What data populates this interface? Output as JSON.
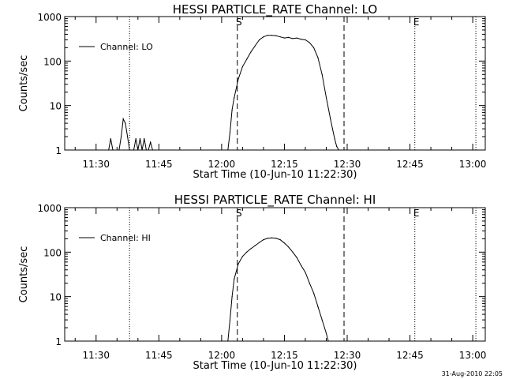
{
  "chart_data": [
    {
      "type": "line",
      "title": "HESSI PARTICLE_RATE Channel: LO",
      "xlabel": "Start Time (10-Jun-10 11:22:30)",
      "ylabel": "Counts/sec",
      "y_scale": "log",
      "ylim": [
        1,
        1000
      ],
      "xlim": [
        "11:22:30",
        "13:03:00"
      ],
      "x_ticks": [
        "11:30",
        "11:45",
        "12:00",
        "12:15",
        "12:30",
        "12:45",
        "13:00"
      ],
      "y_ticks": [
        "1",
        "10",
        "100",
        "1000"
      ],
      "legend": "top-left",
      "series": [
        {
          "name": "Channel: LO",
          "x": [
            "11:33:00",
            "11:33:30",
            "11:34:00",
            "11:35:30",
            "11:36:00",
            "11:36:30",
            "11:37:00",
            "11:37:30",
            "11:38:00",
            "11:38:20",
            "11:38:40",
            "11:39:00",
            "11:39:30",
            "11:40:00",
            "11:40:30",
            "11:41:00",
            "11:41:30",
            "11:42:00",
            "11:42:30",
            "11:43:00",
            "11:43:30",
            "11:44:00",
            "12:01:30",
            "12:02:00",
            "12:02:30",
            "12:03:00",
            "12:04:00",
            "12:05:00",
            "12:06:00",
            "12:07:00",
            "12:08:00",
            "12:09:00",
            "12:10:00",
            "12:11:00",
            "12:12:00",
            "12:13:00",
            "12:14:00",
            "12:15:00",
            "12:16:00",
            "12:17:00",
            "12:18:00",
            "12:19:00",
            "12:20:00",
            "12:21:00",
            "12:22:00",
            "12:23:00",
            "12:24:00",
            "12:25:00",
            "12:26:00",
            "12:26:30",
            "12:27:00",
            "12:27:30",
            "12:28:00"
          ],
          "y": [
            1,
            1.8,
            1,
            1,
            2,
            5,
            4,
            2,
            1,
            1,
            1,
            1,
            1.8,
            1,
            1.8,
            1,
            1.8,
            1,
            1,
            1.5,
            1,
            1,
            1,
            2.5,
            8,
            15,
            40,
            75,
            110,
            160,
            220,
            300,
            350,
            380,
            380,
            370,
            350,
            330,
            340,
            320,
            330,
            310,
            300,
            260,
            200,
            120,
            50,
            15,
            5,
            3,
            1.8,
            1.2,
            1
          ]
        }
      ],
      "event_lines": {
        "dashed": [
          "12:03:45",
          "12:29:15"
        ],
        "dotted": [
          "11:38:00",
          "12:46:10",
          "13:00:45"
        ]
      },
      "markers": [
        {
          "label": "S",
          "x": "12:03:45"
        },
        {
          "label": "E",
          "x": "12:46:10"
        }
      ]
    },
    {
      "type": "line",
      "title": "HESSI PARTICLE_RATE Channel: HI",
      "xlabel": "Start Time (10-Jun-10 11:22:30)",
      "ylabel": "Counts/sec",
      "y_scale": "log",
      "ylim": [
        1,
        1000
      ],
      "xlim": [
        "11:22:30",
        "13:03:00"
      ],
      "x_ticks": [
        "11:30",
        "11:45",
        "12:00",
        "12:15",
        "12:30",
        "12:45",
        "13:00"
      ],
      "y_ticks": [
        "1",
        "10",
        "100",
        "1000"
      ],
      "legend": "top-left",
      "series": [
        {
          "name": "Channel: HI",
          "x": [
            "12:01:30",
            "12:02:00",
            "12:02:30",
            "12:03:00",
            "12:04:00",
            "12:05:00",
            "12:06:00",
            "12:07:00",
            "12:08:00",
            "12:09:00",
            "12:10:00",
            "12:11:00",
            "12:12:00",
            "12:13:00",
            "12:14:00",
            "12:15:00",
            "12:16:00",
            "12:17:00",
            "12:18:00",
            "12:19:00",
            "12:20:00",
            "12:21:00",
            "12:22:00",
            "12:23:00",
            "12:24:00",
            "12:25:00",
            "12:25:30"
          ],
          "y": [
            1,
            3,
            10,
            25,
            55,
            80,
            100,
            120,
            140,
            165,
            190,
            205,
            210,
            205,
            190,
            160,
            130,
            100,
            75,
            50,
            35,
            20,
            12,
            6,
            3,
            1.5,
            1
          ]
        }
      ],
      "event_lines": {
        "dashed": [
          "12:03:45",
          "12:29:15"
        ],
        "dotted": [
          "11:38:00",
          "12:46:10",
          "13:00:45"
        ]
      },
      "markers": [
        {
          "label": "S",
          "x": "12:03:45"
        },
        {
          "label": "E",
          "x": "12:46:10"
        }
      ]
    }
  ],
  "footer": {
    "timestamp": "31-Aug-2010 22:05"
  }
}
